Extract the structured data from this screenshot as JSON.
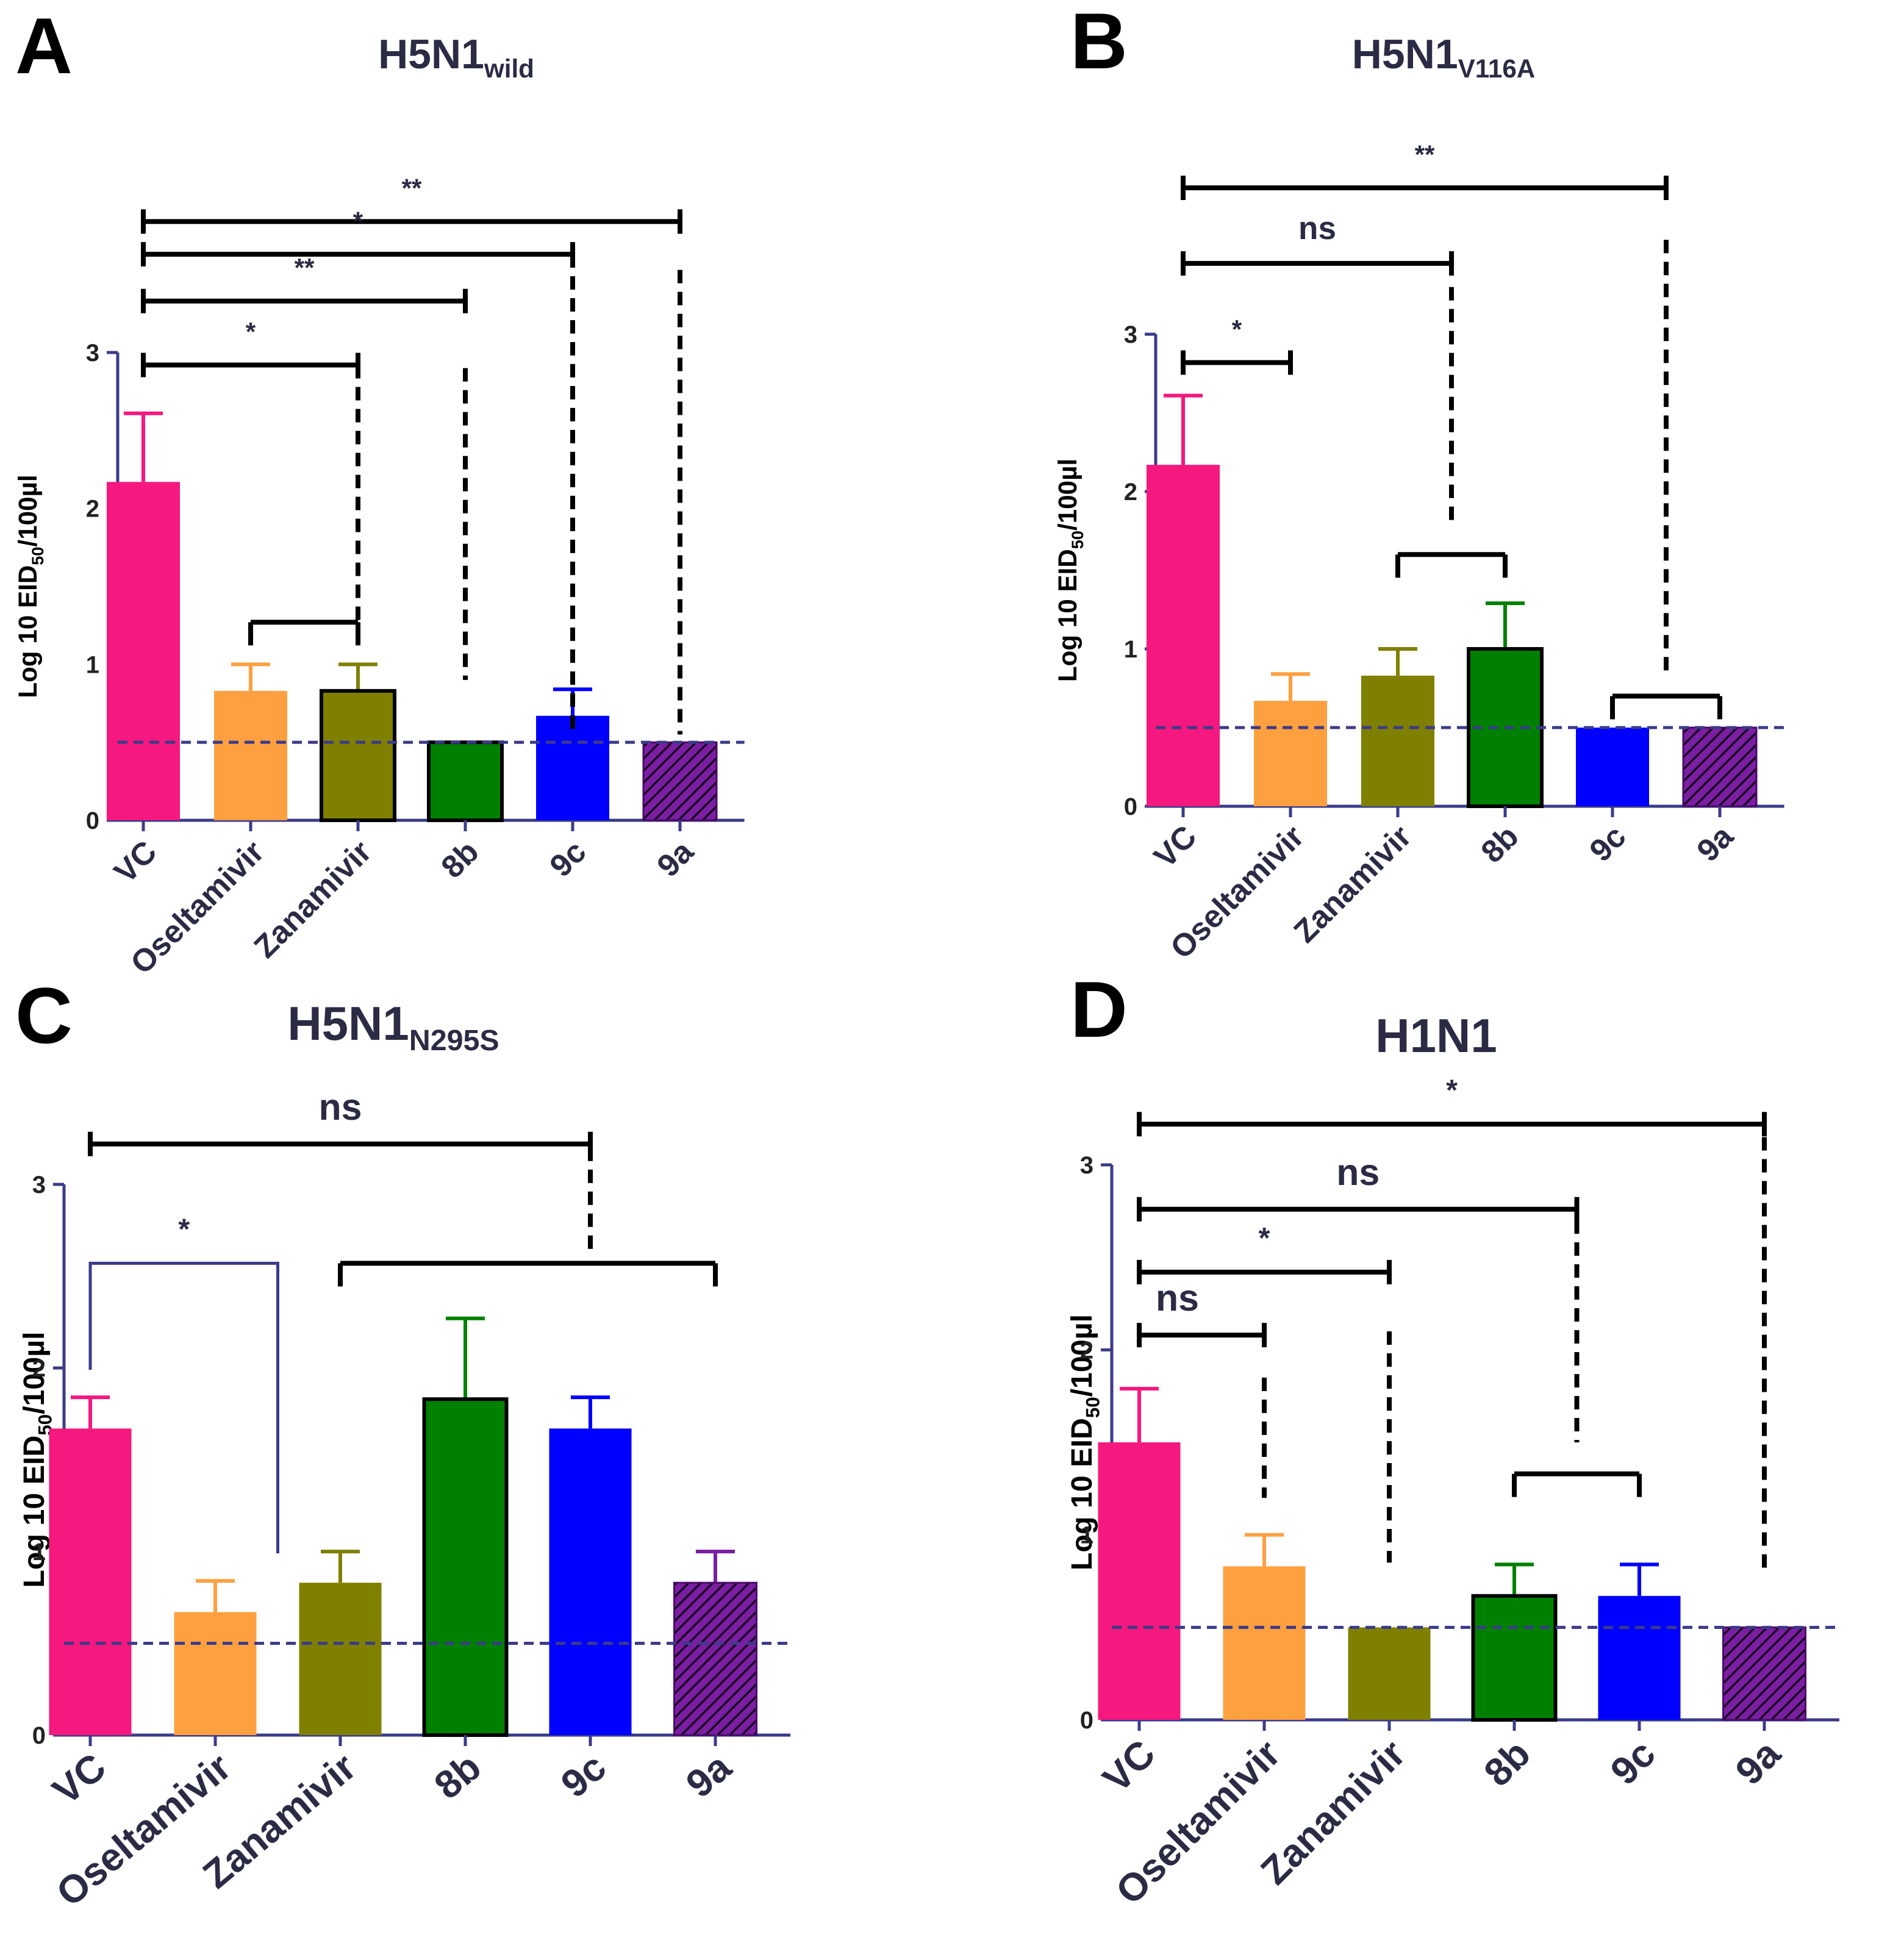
{
  "colors": {
    "axis": "#3b3b8a",
    "VC": "#f5187f",
    "Oseltamivir": "#ffa040",
    "Zanamivir": "#808000",
    "8b": "#008000",
    "9c": "#0000ff",
    "9a": "#7b1fa2",
    "bracket": "#000000",
    "threshold": "#3b3b8a"
  },
  "chart_data": [
    {
      "type": "bar",
      "panel": "A",
      "title": "H5N1",
      "title_sub": "wild",
      "ylabel": "Log 10 EID",
      "ylabel_sub": "50",
      "ylabel_suffix": "/100µl",
      "categories": [
        "VC",
        "Oseltamivir",
        "Zanamivir",
        "8b",
        "9c",
        "9a"
      ],
      "values": [
        2.17,
        0.83,
        0.83,
        0.5,
        0.67,
        0.5
      ],
      "errors": [
        0.44,
        0.17,
        0.17,
        0,
        0.17,
        0
      ],
      "ylim": [
        0,
        3
      ],
      "yticks": [
        "0",
        "1",
        "2",
        "3"
      ],
      "threshold": 0.5,
      "significance": [
        {
          "label": "**",
          "from": "VC",
          "to": "9a"
        },
        {
          "label": "*",
          "from": "VC",
          "to": "9c"
        },
        {
          "label": "**",
          "from": "VC",
          "to": "8b"
        },
        {
          "label": "*",
          "from": "VC",
          "to": "Oseltamivir/Zanamivir"
        }
      ]
    },
    {
      "type": "bar",
      "panel": "B",
      "title": "H5N1",
      "title_sub": "V116A",
      "ylabel": "Log 10 EID",
      "ylabel_sub": "50",
      "ylabel_suffix": "/100µl",
      "categories": [
        "VC",
        "Oseltamivir",
        "Zanamivir",
        "8b",
        "9c",
        "9a"
      ],
      "values": [
        2.17,
        0.67,
        0.83,
        1.0,
        0.5,
        0.5
      ],
      "errors": [
        0.44,
        0.17,
        0.17,
        0.29,
        0,
        0
      ],
      "ylim": [
        0,
        3
      ],
      "yticks": [
        "0",
        "1",
        "2",
        "3"
      ],
      "threshold": 0.5,
      "significance": [
        {
          "label": "**",
          "from": "VC",
          "to": "9c/9a"
        },
        {
          "label": "ns",
          "from": "VC",
          "to": "Zanamivir/8b"
        },
        {
          "label": "*",
          "from": "VC",
          "to": "Oseltamivir"
        }
      ]
    },
    {
      "type": "bar",
      "panel": "C",
      "title": "H5N1",
      "title_sub": "N295S",
      "ylabel": "Log 10 EID",
      "ylabel_sub": "50",
      "ylabel_suffix": "/100µl",
      "categories": [
        "VC",
        "Oseltamivir",
        "Zanamivir",
        "8b",
        "9c",
        "9a"
      ],
      "values": [
        1.67,
        0.67,
        0.83,
        1.83,
        1.67,
        0.83
      ],
      "errors": [
        0.17,
        0.17,
        0.17,
        0.44,
        0.17,
        0.17
      ],
      "ylim": [
        0,
        3
      ],
      "yticks": [
        "0",
        "1",
        "2",
        "3"
      ],
      "threshold": 0.5,
      "significance": [
        {
          "label": "ns",
          "from": "VC",
          "to": "Zanamivir-9a"
        },
        {
          "label": "*",
          "from": "VC",
          "to": "Oseltamivir"
        }
      ]
    },
    {
      "type": "bar",
      "panel": "D",
      "title": "H1N1",
      "title_sub": "",
      "ylabel": "Log 10 EID",
      "ylabel_sub": "50",
      "ylabel_suffix": "/100µl",
      "categories": [
        "VC",
        "Oseltamivir",
        "Zanamivir",
        "8b",
        "9c",
        "9a"
      ],
      "values": [
        1.5,
        0.83,
        0.5,
        0.67,
        0.67,
        0.5
      ],
      "errors": [
        0.29,
        0.17,
        0,
        0.17,
        0.17,
        0
      ],
      "ylim": [
        0,
        3
      ],
      "yticks": [
        "0",
        "1",
        "2",
        "3"
      ],
      "threshold": 0.5,
      "significance": [
        {
          "label": "*",
          "from": "VC",
          "to": "9a"
        },
        {
          "label": "ns",
          "from": "VC",
          "to": "8b/9c"
        },
        {
          "label": "*",
          "from": "VC",
          "to": "Zanamivir"
        },
        {
          "label": "ns",
          "from": "VC",
          "to": "Oseltamivir"
        }
      ]
    }
  ]
}
